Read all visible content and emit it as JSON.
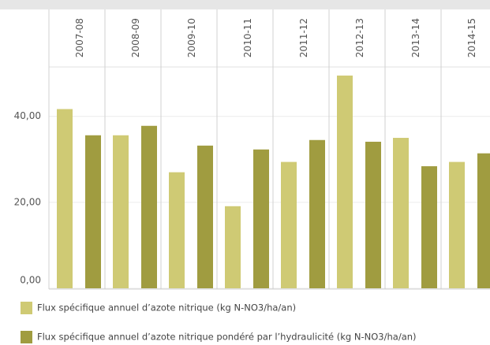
{
  "chart_data": {
    "type": "bar",
    "categories": [
      "2007-08",
      "2008-09",
      "2009-10",
      "2010-11",
      "2011-12",
      "2012-13",
      "2013-14",
      "2014-15"
    ],
    "series": [
      {
        "name": "Flux spécifique annuel d’azote nitrique (kg N-NO3/ha/an)",
        "color": "#cfca74",
        "values": [
          41.7,
          35.6,
          27,
          19.1,
          29.4,
          49.5,
          35,
          29.4
        ]
      },
      {
        "name": "Flux spécifique annuel d’azote nitrique pondéré par l’hydraulicité (kg N-NO3/ha/an)",
        "color": "#a09c40",
        "values": [
          35.6,
          37.8,
          33.2,
          32.3,
          34.5,
          34.1,
          28.4,
          31.4
        ]
      }
    ],
    "ylim": [
      0,
      51.5
    ],
    "yticks": [
      {
        "value": 0,
        "label": "0,00"
      },
      {
        "value": 20,
        "label": "20,00"
      },
      {
        "value": 40,
        "label": "40,00"
      }
    ],
    "grid": true
  }
}
